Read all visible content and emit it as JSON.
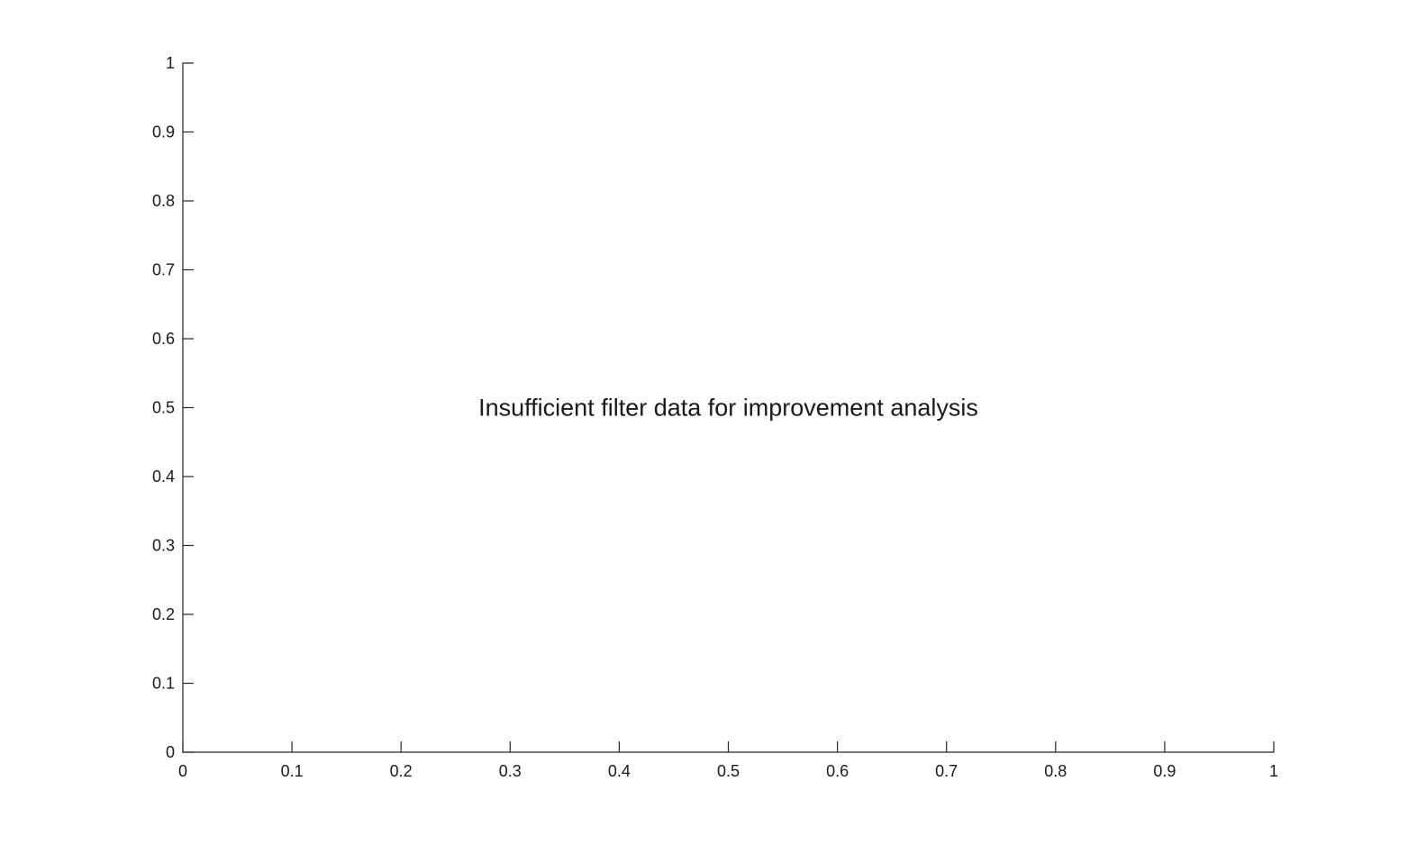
{
  "chart_data": {
    "type": "line",
    "series": [],
    "xlim": [
      0,
      1
    ],
    "ylim": [
      0,
      1
    ],
    "x_ticks": [
      0,
      0.1,
      0.2,
      0.3,
      0.4,
      0.5,
      0.6,
      0.7,
      0.8,
      0.9,
      1
    ],
    "x_tick_labels": [
      "0",
      "0.1",
      "0.2",
      "0.3",
      "0.4",
      "0.5",
      "0.6",
      "0.7",
      "0.8",
      "0.9",
      "1"
    ],
    "y_ticks": [
      0,
      0.1,
      0.2,
      0.3,
      0.4,
      0.5,
      0.6,
      0.7,
      0.8,
      0.9,
      1
    ],
    "y_tick_labels": [
      "0",
      "0.1",
      "0.2",
      "0.3",
      "0.4",
      "0.5",
      "0.6",
      "0.7",
      "0.8",
      "0.9",
      "1"
    ],
    "grid": false,
    "annotations": [
      {
        "text": "Insufficient filter data for improvement analysis",
        "x": 0.5,
        "y": 0.5
      }
    ]
  }
}
